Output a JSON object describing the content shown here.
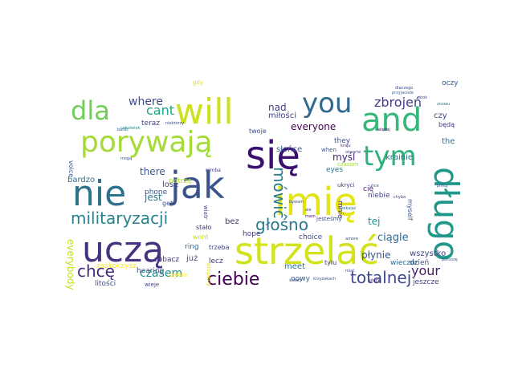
{
  "words": [
    {
      "text": "się",
      "color": "#3b0f70"
    },
    {
      "text": "imię",
      "color": "#e2e418"
    },
    {
      "text": "strzelać",
      "color": "#d2e21b"
    },
    {
      "text": "uczą",
      "color": "#46327e"
    },
    {
      "text": "nie",
      "color": "#2c728e"
    },
    {
      "text": "jak",
      "color": "#3b528b"
    },
    {
      "text": "will",
      "color": "#cde11d"
    },
    {
      "text": "and",
      "color": "#35b779"
    },
    {
      "text": "porywają",
      "color": "#a5db36"
    },
    {
      "text": "you",
      "color": "#31688e"
    },
    {
      "text": "długo",
      "color": "#1f988b"
    },
    {
      "text": "tym",
      "color": "#2db27d"
    },
    {
      "text": "dla",
      "color": "#6ece58"
    },
    {
      "text": "militaryzacji",
      "color": "#26828e"
    },
    {
      "text": "mówić",
      "color": "#287d8e"
    },
    {
      "text": "głośno",
      "color": "#2a788e"
    },
    {
      "text": "ciebie",
      "color": "#440154"
    },
    {
      "text": "chcę",
      "color": "#472c7a"
    },
    {
      "text": "totalnej",
      "color": "#3f4889"
    },
    {
      "text": "czasem",
      "color": "#21918c"
    },
    {
      "text": "zbrojeń",
      "color": "#443a83"
    },
    {
      "text": "your",
      "color": "#481b6d"
    },
    {
      "text": "cant",
      "color": "#20a486"
    },
    {
      "text": "where",
      "color": "#3e4c8a"
    },
    {
      "text": "everyone",
      "color": "#440154"
    },
    {
      "text": "jest",
      "color": "#2a768e"
    },
    {
      "text": "there",
      "color": "#3b528b"
    },
    {
      "text": "ciągle",
      "color": "#31688e"
    },
    {
      "text": "płynie",
      "color": "#3b528b"
    },
    {
      "text": "myśl",
      "color": "#482475"
    },
    {
      "text": "krainie",
      "color": "#2c728e"
    },
    {
      "text": "tej",
      "color": "#21918c"
    },
    {
      "text": "nad",
      "color": "#443b84"
    },
    {
      "text": "miłości",
      "color": "#404688"
    },
    {
      "text": "czy",
      "color": "#3e4989"
    },
    {
      "text": "the",
      "color": "#2d708e"
    },
    {
      "text": "słońce",
      "color": "#365d8d"
    },
    {
      "text": "eyes",
      "color": "#2a788e"
    },
    {
      "text": "they",
      "color": "#3b528b"
    },
    {
      "text": "everybody",
      "color": "#c2df23"
    },
    {
      "text": "bardzo",
      "color": "#2f6c8e"
    },
    {
      "text": "lose",
      "color": "#414487"
    },
    {
      "text": "phone",
      "color": "#38598c"
    },
    {
      "text": "bez",
      "color": "#472d7b"
    },
    {
      "text": "meet",
      "color": "#2c738e"
    },
    {
      "text": "nowy",
      "color": "#355f8d"
    },
    {
      "text": "choice",
      "color": "#3e4a89"
    },
    {
      "text": "hope",
      "color": "#433d84"
    },
    {
      "text": "lecz",
      "color": "#46307e"
    },
    {
      "text": "już",
      "color": "#3d4d8a"
    },
    {
      "text": "wszystko",
      "color": "#404588"
    },
    {
      "text": "dzień",
      "color": "#3b528b"
    },
    {
      "text": "jeszcze",
      "color": "#414487"
    },
    {
      "text": "zobacz",
      "color": "#453781"
    },
    {
      "text": "ring",
      "color": "#33638d"
    },
    {
      "text": "hearing",
      "color": "#3b528b"
    },
    {
      "text": "litości",
      "color": "#3e4c8a"
    },
    {
      "text": "zaskoczysz",
      "color": "#fde725"
    },
    {
      "text": "wont",
      "color": "#c8e020"
    },
    {
      "text": "patrzę",
      "color": "#addc30"
    },
    {
      "text": "teraz",
      "color": "#414487"
    },
    {
      "text": "twoje",
      "color": "#3e4c8a"
    },
    {
      "text": "trzeba",
      "color": "#3e4989"
    },
    {
      "text": "stało",
      "color": "#443983"
    },
    {
      "text": "get",
      "color": "#3b528b"
    },
    {
      "text": "tylu",
      "color": "#453882"
    },
    {
      "text": "wieczór",
      "color": "#2e6e8e"
    },
    {
      "text": "cię",
      "color": "#482878"
    },
    {
      "text": "niebie",
      "color": "#3f4788"
    },
    {
      "text": "mnie",
      "color": "#472a7a"
    },
    {
      "text": "myself",
      "color": "#3b528b"
    },
    {
      "text": "będą",
      "color": "#46337f"
    },
    {
      "text": "oczy",
      "color": "#39568c"
    },
    {
      "text": "voice",
      "color": "#3b528b"
    },
    {
      "text": "wieje",
      "color": "#414487"
    },
    {
      "text": "szybko",
      "color": "#fde725"
    },
    {
      "text": "properly",
      "color": "#e5e419"
    },
    {
      "text": "gdy",
      "color": "#dde318"
    },
    {
      "text": "czasom",
      "color": "#a0da39"
    },
    {
      "text": "jesteśmy",
      "color": "#3b528b"
    },
    {
      "text": "when",
      "color": "#38588c"
    },
    {
      "text": "ukryci",
      "color": "#46307e"
    },
    {
      "text": "wiatr",
      "color": "#3e4c8a"
    },
    {
      "text": "nimba",
      "color": "#424186"
    },
    {
      "text": "bańki",
      "color": "#31688e"
    },
    {
      "text": "ulice",
      "color": "#31688e"
    },
    {
      "text": "kraju",
      "color": "#472c7a"
    },
    {
      "text": "cokolwiek",
      "color": "#21918c"
    },
    {
      "text": "czekając",
      "color": "#2c728e"
    },
    {
      "text": "pilnuj",
      "color": "#3e4c8a"
    },
    {
      "text": "placki",
      "color": "#482475"
    },
    {
      "text": "poruszę",
      "color": "#38598c"
    },
    {
      "text": "dlaczego",
      "color": "#3b528b"
    },
    {
      "text": "przyjaciele",
      "color": "#355e8d"
    },
    {
      "text": "więcej",
      "color": "#440154"
    },
    {
      "text": "niektórzy",
      "color": "#3e4c8a"
    },
    {
      "text": "bywam",
      "color": "#3b528b"
    },
    {
      "text": "amore",
      "color": "#3b528b"
    },
    {
      "text": "znowu",
      "color": "#2c738e"
    },
    {
      "text": "mogą",
      "color": "#3b528b"
    },
    {
      "text": "świety",
      "color": "#3b528b"
    },
    {
      "text": "chyba",
      "color": "#414487"
    },
    {
      "text": "krzyżakach",
      "color": "#3b528b"
    },
    {
      "text": "miał",
      "color": "#414487"
    },
    {
      "text": "obok",
      "color": "#3b528b"
    },
    {
      "text": "otwarte",
      "color": "#404688"
    },
    {
      "text": "ale",
      "color": "#3e4c8a"
    },
    {
      "text": "mam",
      "color": "#471063"
    }
  ]
}
